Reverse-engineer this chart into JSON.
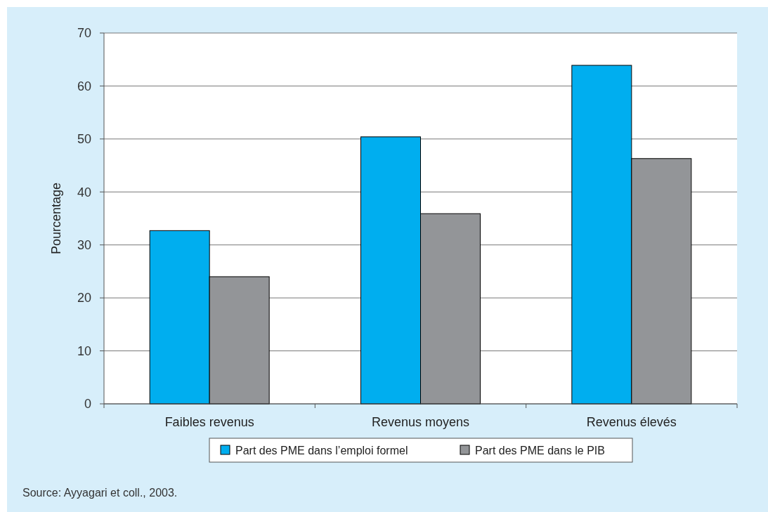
{
  "chart_data": {
    "type": "bar",
    "ylabel": "Pourcentage",
    "categories": [
      "Faibles revenus",
      "Revenus moyens",
      "Revenus élevés"
    ],
    "series": [
      {
        "name": "Part des PME dans l’emploi formel",
        "color": "#00aeef",
        "values": [
          32.7,
          50.4,
          63.9
        ]
      },
      {
        "name": "Part des PME dans le PIB",
        "color": "#939598",
        "values": [
          24,
          35.9,
          46.3
        ]
      }
    ],
    "ylim": [
      0,
      70
    ],
    "yticks": [
      0,
      10,
      20,
      30,
      40,
      50,
      60,
      70
    ],
    "grid": "y",
    "legend": "bottom",
    "annotations": [
      "Source: Ayyagari et coll., 2003."
    ]
  }
}
